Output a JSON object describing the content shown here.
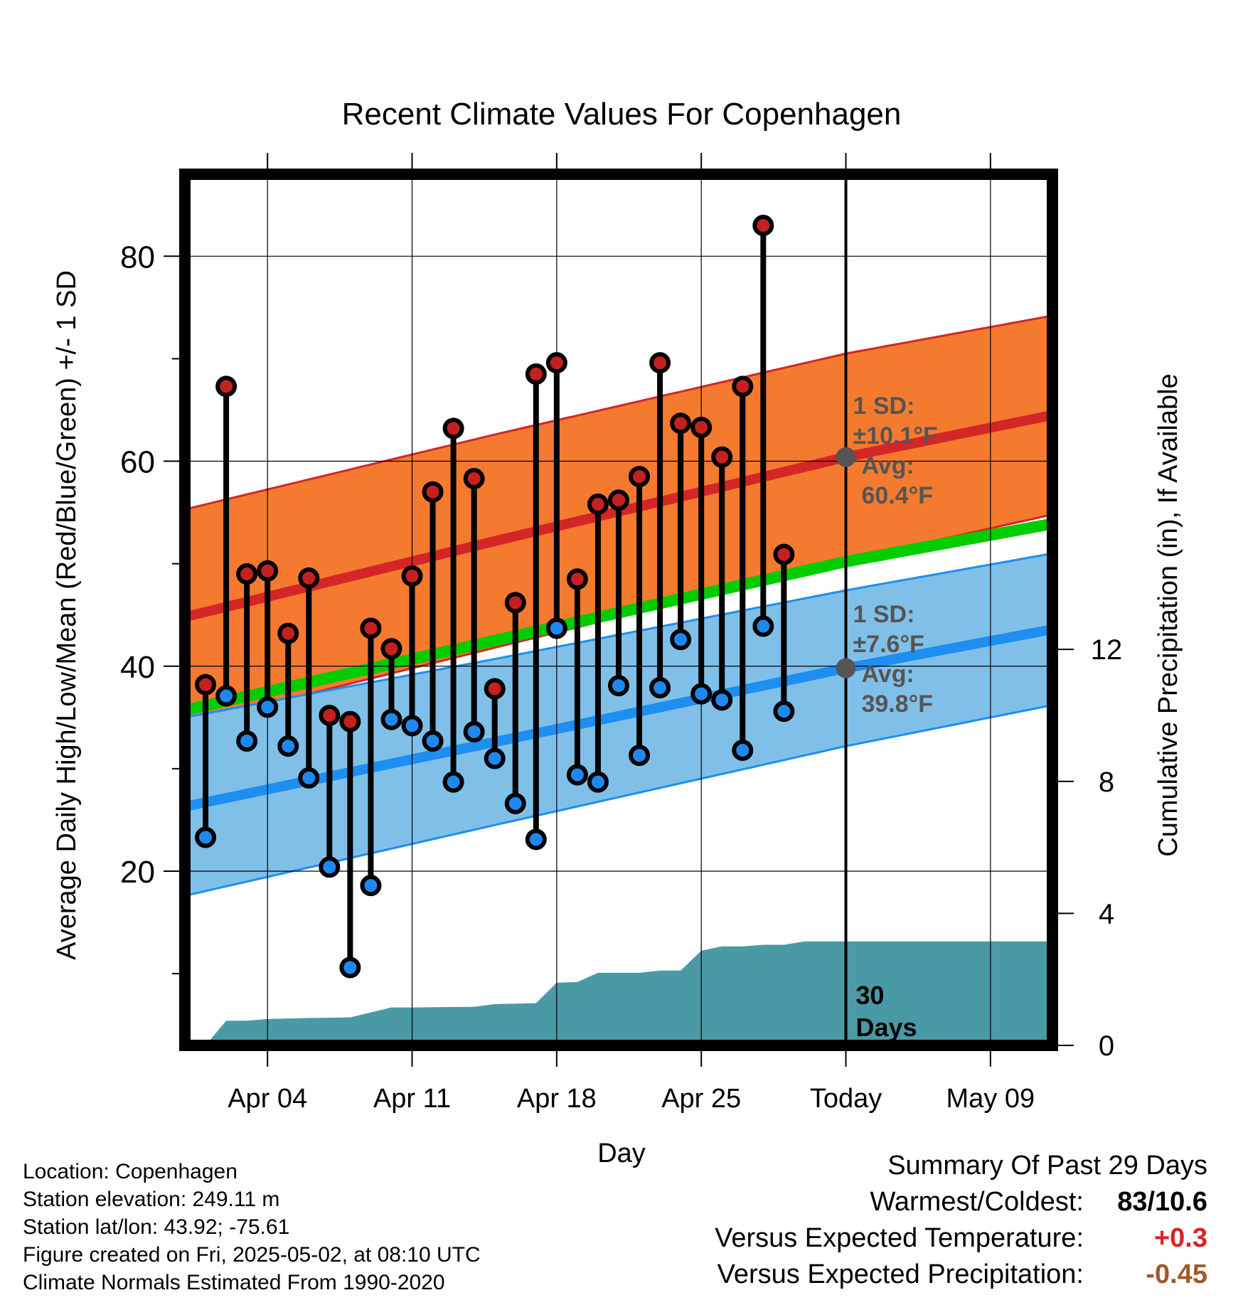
{
  "chart_data": {
    "type": "line",
    "title": "Recent Climate Values For Copenhagen",
    "xlabel": "Day",
    "ylabel_left": "Average Daily High/Low/Mean (Red/Blue/Green) +/- 1 SD",
    "ylabel_right": "Cumulative Precipitation (in), If Available",
    "x_range": [
      "2025-03-31",
      "2025-05-12"
    ],
    "y_range_left": [
      3,
      88
    ],
    "y_range_right": [
      0,
      26.4
    ],
    "x_ticks": [
      {
        "date": "2025-04-04",
        "label": "Apr 04"
      },
      {
        "date": "2025-04-11",
        "label": "Apr 11"
      },
      {
        "date": "2025-04-18",
        "label": "Apr 18"
      },
      {
        "date": "2025-04-25",
        "label": "Apr 25"
      },
      {
        "date": "2025-05-02",
        "label": "Today"
      },
      {
        "date": "2025-05-09",
        "label": "May 09"
      }
    ],
    "y_ticks_left": [
      20,
      40,
      60,
      80
    ],
    "y_ticks_right": [
      0,
      4,
      8,
      12
    ],
    "grid": true,
    "today": "2025-05-02",
    "today_label": "30 Days",
    "daily": [
      {
        "date": "2025-04-01",
        "high": 38.2,
        "low": 23.3
      },
      {
        "date": "2025-04-02",
        "high": 67.3,
        "low": 37.1
      },
      {
        "date": "2025-04-03",
        "high": 49.0,
        "low": 32.7
      },
      {
        "date": "2025-04-04",
        "high": 49.3,
        "low": 36.0
      },
      {
        "date": "2025-04-05",
        "high": 43.2,
        "low": 32.2
      },
      {
        "date": "2025-04-06",
        "high": 48.6,
        "low": 29.1
      },
      {
        "date": "2025-04-07",
        "high": 35.2,
        "low": 20.4
      },
      {
        "date": "2025-04-08",
        "high": 34.6,
        "low": 10.6
      },
      {
        "date": "2025-04-09",
        "high": 43.7,
        "low": 18.6
      },
      {
        "date": "2025-04-10",
        "high": 41.7,
        "low": 34.8
      },
      {
        "date": "2025-04-11",
        "high": 48.8,
        "low": 34.2
      },
      {
        "date": "2025-04-12",
        "high": 57.0,
        "low": 32.7
      },
      {
        "date": "2025-04-13",
        "high": 63.2,
        "low": 28.7
      },
      {
        "date": "2025-04-14",
        "high": 58.3,
        "low": 33.6
      },
      {
        "date": "2025-04-15",
        "high": 37.8,
        "low": 31.0
      },
      {
        "date": "2025-04-16",
        "high": 46.2,
        "low": 26.6
      },
      {
        "date": "2025-04-17",
        "high": 68.5,
        "low": 23.1
      },
      {
        "date": "2025-04-18",
        "high": 69.6,
        "low": 43.7
      },
      {
        "date": "2025-04-19",
        "high": 48.5,
        "low": 29.4
      },
      {
        "date": "2025-04-20",
        "high": 55.8,
        "low": 28.7
      },
      {
        "date": "2025-04-21",
        "high": 56.2,
        "low": 38.1
      },
      {
        "date": "2025-04-22",
        "high": 58.5,
        "low": 31.3
      },
      {
        "date": "2025-04-23",
        "high": 69.6,
        "low": 37.9
      },
      {
        "date": "2025-04-24",
        "high": 63.7,
        "low": 42.6
      },
      {
        "date": "2025-04-25",
        "high": 63.3,
        "low": 37.3
      },
      {
        "date": "2025-04-26",
        "high": 60.4,
        "low": 36.7
      },
      {
        "date": "2025-04-27",
        "high": 67.3,
        "low": 31.8
      },
      {
        "date": "2025-04-28",
        "high": 83.0,
        "low": 43.9
      },
      {
        "date": "2025-04-29",
        "high": 50.9,
        "low": 35.6
      }
    ],
    "normals": [
      {
        "date": "2025-03-31",
        "high_mean": 44.8,
        "high_sd": 10.5,
        "low_mean": 26.3,
        "low_sd": 8.7,
        "mean": 35.7
      },
      {
        "date": "2025-04-15",
        "high_mean": 52.2,
        "high_sd": 10.4,
        "low_mean": 32.6,
        "low_sd": 8.1,
        "mean": 42.5
      },
      {
        "date": "2025-05-02",
        "high_mean": 60.4,
        "high_sd": 10.1,
        "low_mean": 39.8,
        "low_sd": 7.6,
        "mean": 50.2
      },
      {
        "date": "2025-05-12",
        "high_mean": 64.5,
        "high_sd": 9.7,
        "low_mean": 43.6,
        "low_sd": 7.4,
        "mean": 53.9
      }
    ],
    "precip_cumulative": [
      {
        "date": "2025-03-31",
        "value": 0.0
      },
      {
        "date": "2025-04-01",
        "value": 0.0
      },
      {
        "date": "2025-04-02",
        "value": 0.75
      },
      {
        "date": "2025-04-03",
        "value": 0.75
      },
      {
        "date": "2025-04-04",
        "value": 0.8
      },
      {
        "date": "2025-04-06",
        "value": 0.83
      },
      {
        "date": "2025-04-08",
        "value": 0.85
      },
      {
        "date": "2025-04-10",
        "value": 1.15
      },
      {
        "date": "2025-04-11",
        "value": 1.15
      },
      {
        "date": "2025-04-14",
        "value": 1.17
      },
      {
        "date": "2025-04-15",
        "value": 1.25
      },
      {
        "date": "2025-04-17",
        "value": 1.28
      },
      {
        "date": "2025-04-18",
        "value": 1.9
      },
      {
        "date": "2025-04-19",
        "value": 1.92
      },
      {
        "date": "2025-04-20",
        "value": 2.2
      },
      {
        "date": "2025-04-22",
        "value": 2.2
      },
      {
        "date": "2025-04-23",
        "value": 2.27
      },
      {
        "date": "2025-04-24",
        "value": 2.27
      },
      {
        "date": "2025-04-25",
        "value": 2.87
      },
      {
        "date": "2025-04-26",
        "value": 3.0
      },
      {
        "date": "2025-04-27",
        "value": 3.0
      },
      {
        "date": "2025-04-28",
        "value": 3.05
      },
      {
        "date": "2025-04-29",
        "value": 3.05
      },
      {
        "date": "2025-04-30",
        "value": 3.15
      },
      {
        "date": "2025-05-12",
        "value": 3.15
      }
    ],
    "annotations": {
      "high": {
        "sd_title": "1 SD:",
        "sd_value": "±10.1°F",
        "avg_title": "Avg:",
        "avg_value": "60.4°F",
        "avg": 60.4
      },
      "low": {
        "sd_title": "1 SD:",
        "sd_value": "±7.6°F",
        "avg_title": "Avg:",
        "avg_value": "39.8°F",
        "avg": 39.8
      }
    },
    "colors": {
      "high_band": "#f47a30",
      "high_line": "#d42626",
      "low_band": "#80c0e8",
      "low_line": "#1e8ef0",
      "mean_line": "#00cc00",
      "precip": "#4a9aa5",
      "high_marker": "#c42020",
      "low_marker": "#1e88ee",
      "annotation": "#555555"
    }
  },
  "info": {
    "location": "Location: Copenhagen",
    "elevation": "Station elevation: 249.11 m",
    "latlon": "Station lat/lon: 43.92; -75.61",
    "created": "Figure created on Fri, 2025-05-02, at 08:10 UTC",
    "normals": "Climate Normals Estimated From 1990-2020"
  },
  "summary": {
    "title": "Summary Of Past 29 Days",
    "warmest_label": "Warmest/Coldest:",
    "warmest_value": "83/10.6",
    "temp_label": "Versus Expected Temperature:",
    "temp_value": "+0.3",
    "temp_color": "#d42626",
    "precip_label": "Versus Expected Precipitation:",
    "precip_value": "-0.45",
    "precip_color": "#a0582a"
  }
}
